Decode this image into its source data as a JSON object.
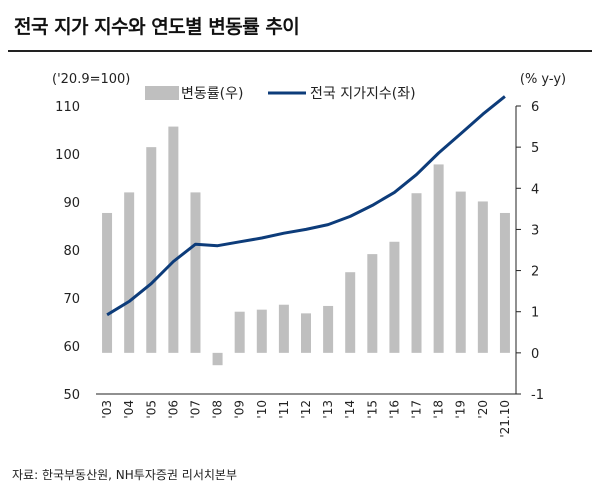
{
  "title": "전국 지가 지수와 연도별 변동률 추이",
  "source": "자료: 한국부동산원, NH투자증권 리서치본부",
  "chart_data": {
    "type": "bar",
    "categories": [
      "'03",
      "'04",
      "'05",
      "'06",
      "'07",
      "'08",
      "'09",
      "'10",
      "'11",
      "'12",
      "'13",
      "'14",
      "'15",
      "'16",
      "'17",
      "'18",
      "'19",
      "'20",
      "'21.10"
    ],
    "left_axis_label": "('20.9=100)",
    "right_axis_label": "(% y-y)",
    "left_ylim": [
      50,
      110
    ],
    "left_ticks": [
      "110",
      "100",
      "90",
      "80",
      "70",
      "60",
      "50"
    ],
    "right_ylim": [
      -1,
      6
    ],
    "right_ticks": [
      "6",
      "5",
      "4",
      "3",
      "2",
      "1",
      "0",
      "-1"
    ],
    "bar_color": "#bfbfbf",
    "line_color": "#0d3c7a",
    "legend_placement": "top",
    "series": [
      {
        "name": "변동률(우)",
        "type": "bar",
        "axis": "right",
        "values": [
          3.4,
          3.9,
          5.0,
          5.5,
          3.9,
          -0.3,
          1.0,
          1.05,
          1.17,
          0.96,
          1.14,
          1.96,
          2.4,
          2.7,
          3.88,
          4.58,
          3.92,
          3.68,
          3.4
        ]
      },
      {
        "name": "전국 지가지수(좌)",
        "type": "line",
        "axis": "left",
        "values": [
          66.5,
          69.3,
          73.0,
          77.6,
          81.2,
          80.9,
          81.7,
          82.5,
          83.5,
          84.3,
          85.3,
          87.0,
          89.3,
          92.0,
          95.7,
          100.2,
          104.2,
          108.3,
          112.0
        ]
      }
    ]
  }
}
